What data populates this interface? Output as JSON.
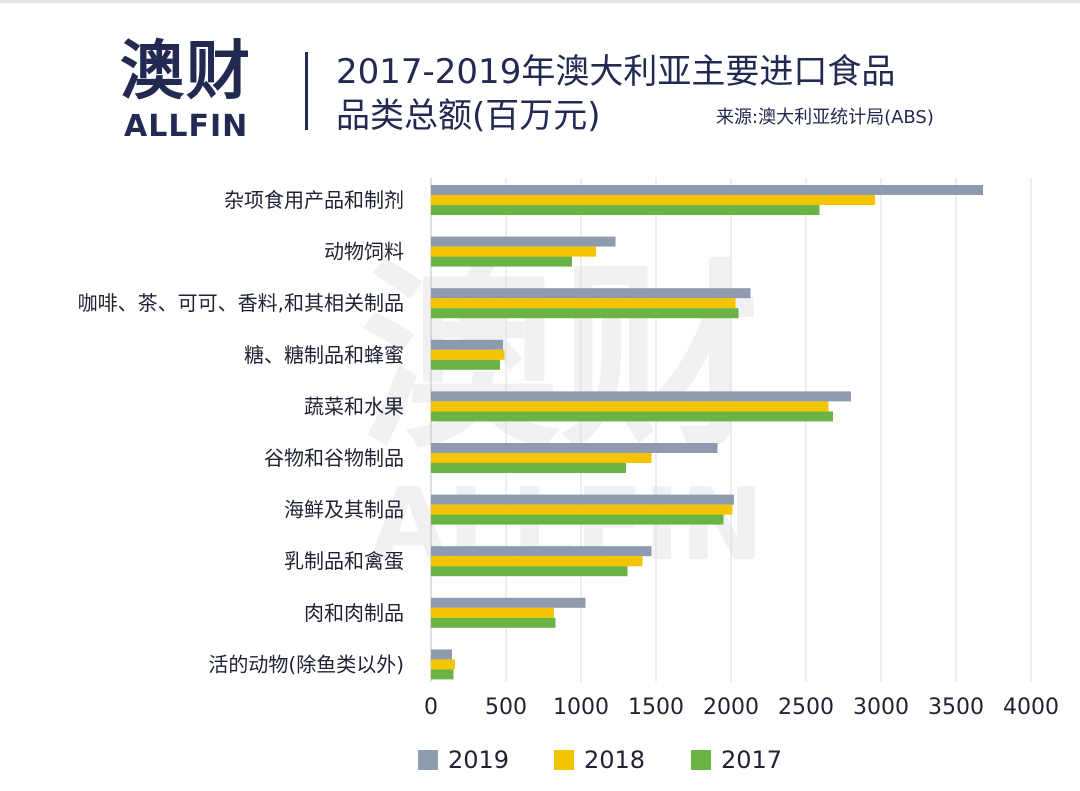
{
  "header": {
    "logo_cn": "澳财",
    "logo_en": "ALLFIN",
    "title_line1": "2017-2019年澳大利亚主要进口食品",
    "title_line2": "品类总额(百万元)",
    "source": "来源:澳大利亚统计局(ABS)"
  },
  "chart_data": {
    "type": "bar",
    "orientation": "horizontal",
    "title": "2017-2019年澳大利亚主要进口食品品类总额(百万元)",
    "categories": [
      "杂项食用产品和制剂",
      "动物饲料",
      "咖啡、茶、可可、香料,和其相关制品",
      "糖、糖制品和蜂蜜",
      "蔬菜和水果",
      "谷物和谷物制品",
      "海鲜及其制品",
      "乳制品和禽蛋",
      "肉和肉制品",
      "活的动物(除鱼类以外)"
    ],
    "series": [
      {
        "name": "2019",
        "color": "#8e9aad",
        "values": [
          3680,
          1230,
          2130,
          480,
          2800,
          1910,
          2020,
          1470,
          1030,
          140
        ]
      },
      {
        "name": "2018",
        "color": "#f5c400",
        "values": [
          2960,
          1100,
          2030,
          490,
          2650,
          1470,
          2010,
          1410,
          820,
          160
        ]
      },
      {
        "name": "2017",
        "color": "#6ab344",
        "values": [
          2590,
          940,
          2050,
          460,
          2680,
          1300,
          1950,
          1310,
          830,
          150
        ]
      }
    ],
    "xlim": [
      0,
      4000
    ],
    "xticks": [
      0,
      500,
      1000,
      1500,
      2000,
      2500,
      3000,
      3500,
      4000
    ],
    "grid": "vertical",
    "legend_position": "bottom"
  }
}
